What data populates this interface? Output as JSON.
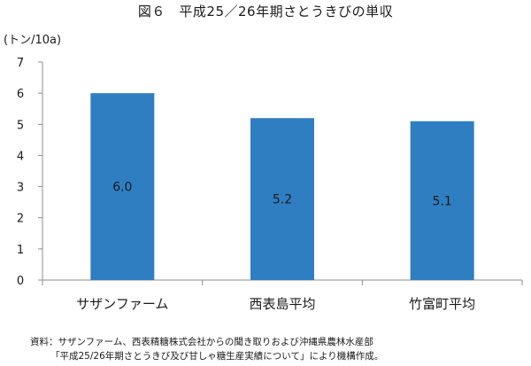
{
  "chart_data": {
    "type": "bar",
    "title": "図６　平成25／26年期さとうきびの単収",
    "ylabel": "(トン/10a)",
    "xlabel": "",
    "categories": [
      "サザンファーム",
      "西表島平均",
      "竹富町平均"
    ],
    "values": [
      6.0,
      5.2,
      5.1
    ],
    "value_labels": [
      "6.0",
      "5.2",
      "5.1"
    ],
    "ylim": [
      0,
      7
    ],
    "yticks": [
      "0",
      "1",
      "2",
      "3",
      "4",
      "5",
      "6",
      "7"
    ],
    "grid": false,
    "legend": "none",
    "bar_color": "#2f7ec1"
  },
  "source": {
    "line1": "資料：サザンファーム、西表精糖株式会社からの聞き取りおよび沖縄県農林水産部",
    "line2": "「平成25/26年期さとうきび及び甘しゃ糖生産実績について」により機構作成。"
  }
}
